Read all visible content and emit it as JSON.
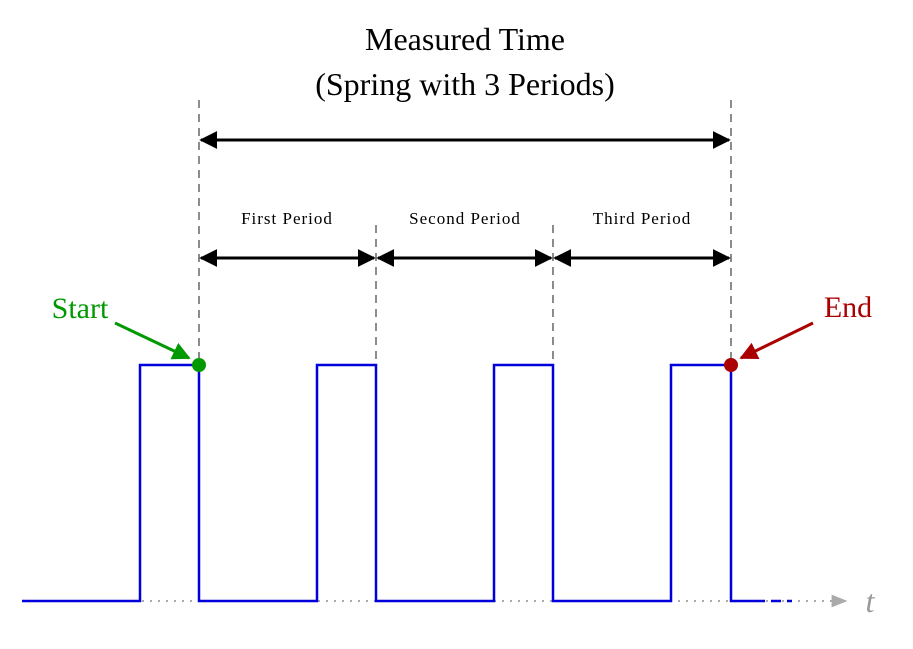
{
  "title": {
    "line1": "Measured Time",
    "line2": "(Spring with 3 Periods)"
  },
  "periods": [
    "First Period",
    "Second Period",
    "Third Period"
  ],
  "markers": {
    "start": "Start",
    "end": "End"
  },
  "axis": {
    "label": "t"
  }
}
